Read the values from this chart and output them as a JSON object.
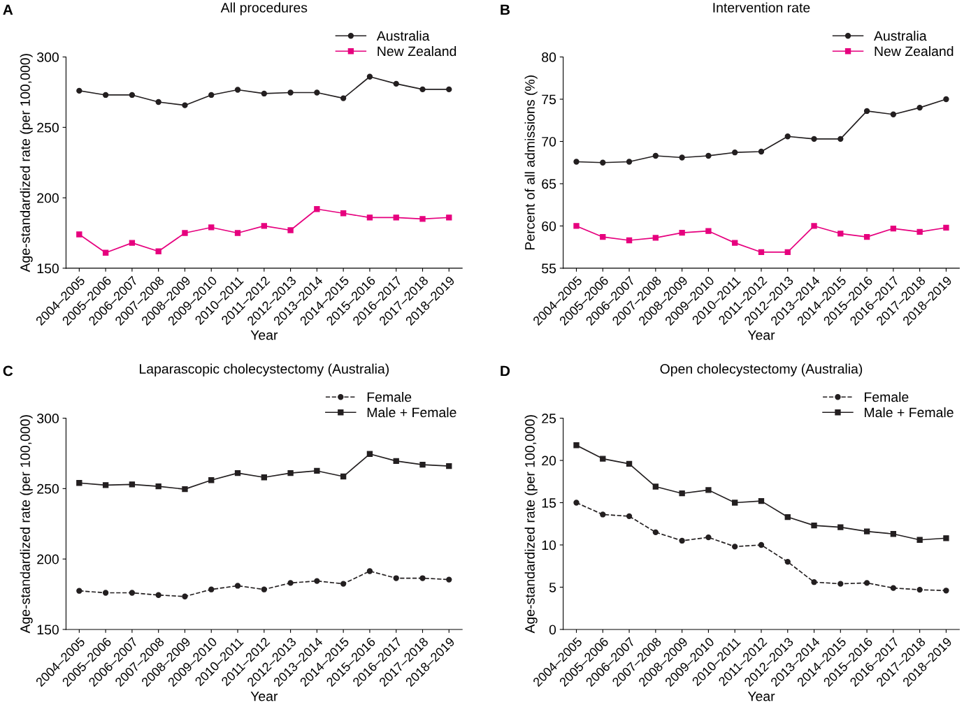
{
  "chart_data": [
    {
      "type": "line",
      "title": "All procedures",
      "xlabel": "Year",
      "ylabel": "Age-standardized rate (per 100,000)",
      "annotations": [
        "A"
      ],
      "categories": [
        "2004–2005",
        "2005–2006",
        "2006–2007",
        "2007–2008",
        "2008–2009",
        "2009–2010",
        "2010–2011",
        "2011–2012",
        "2012–2013",
        "2013–2014",
        "2014–2015",
        "2015–2016",
        "2016–2017",
        "2017–2018",
        "2018–2019"
      ],
      "ylim": [
        150,
        300
      ],
      "yticks": [
        150,
        200,
        250,
        300
      ],
      "grid": false,
      "legend": "top right",
      "series": [
        {
          "name": "Australia",
          "color": "#231f20",
          "marker": "circle",
          "line_style": "solid",
          "values": [
            276,
            273,
            273,
            268,
            265.7,
            273,
            276.7,
            274,
            274.7,
            274.7,
            270.7,
            286,
            281,
            277,
            277
          ]
        },
        {
          "name": "New Zealand",
          "color": "#e6007e",
          "marker": "square",
          "line_style": "solid",
          "values": [
            174,
            161,
            168,
            162,
            175,
            179,
            175,
            180,
            177,
            192,
            189,
            186,
            186,
            185,
            186
          ]
        }
      ]
    },
    {
      "type": "line",
      "title": "Intervention rate",
      "xlabel": "Year",
      "ylabel": "Percent of all admissions (%)",
      "annotations": [
        "B"
      ],
      "categories": [
        "2004–2005",
        "2005–2006",
        "2006–2007",
        "2007–2008",
        "2008–2009",
        "2009–2010",
        "2010–2011",
        "2011–2012",
        "2012–2013",
        "2013–2014",
        "2014–2015",
        "2015–2016",
        "2016–2017",
        "2017–2018",
        "2018–2019"
      ],
      "ylim": [
        55,
        80
      ],
      "yticks": [
        55,
        60,
        65,
        70,
        75,
        80
      ],
      "grid": false,
      "legend": "top right",
      "series": [
        {
          "name": "Australia",
          "color": "#231f20",
          "marker": "circle",
          "line_style": "solid",
          "values": [
            67.6,
            67.5,
            67.6,
            68.3,
            68.1,
            68.3,
            68.7,
            68.8,
            70.6,
            70.3,
            70.3,
            73.6,
            73.2,
            74.0,
            75.0
          ]
        },
        {
          "name": "New Zealand",
          "color": "#e6007e",
          "marker": "square",
          "line_style": "solid",
          "values": [
            60.0,
            58.7,
            58.3,
            58.6,
            59.2,
            59.4,
            58.0,
            56.9,
            56.9,
            60.0,
            59.1,
            58.7,
            59.7,
            59.3,
            59.8
          ]
        }
      ]
    },
    {
      "type": "line",
      "title": "Laparascopic cholecystectomy (Australia)",
      "xlabel": "Year",
      "ylabel": "Age-standardized rate (per 100,000)",
      "annotations": [
        "C"
      ],
      "categories": [
        "2004–2005",
        "2005–2006",
        "2006–2007",
        "2007–2008",
        "2008–2009",
        "2009–2010",
        "2010–2011",
        "2011–2012",
        "2012–2013",
        "2013–2014",
        "2014–2015",
        "2015–2016",
        "2016–2017",
        "2017–2018",
        "2018–2019"
      ],
      "ylim": [
        150,
        300
      ],
      "yticks": [
        150,
        200,
        250,
        300
      ],
      "grid": false,
      "legend": "top right",
      "series": [
        {
          "name": "Female",
          "color": "#231f20",
          "marker": "circle",
          "line_style": "dashed",
          "values": [
            177.4,
            176,
            176,
            174.4,
            173.4,
            178.4,
            181,
            178.4,
            183,
            184.4,
            182.4,
            191.4,
            186.4,
            186.4,
            185.4
          ]
        },
        {
          "name": "Male + Female",
          "color": "#231f20",
          "marker": "square",
          "line_style": "solid",
          "values": [
            254,
            252.5,
            253,
            251.6,
            249.6,
            256,
            261,
            258,
            261,
            262.6,
            258.6,
            274.6,
            269.6,
            267,
            266
          ]
        }
      ]
    },
    {
      "type": "line",
      "title": "Open cholecystectomy (Australia)",
      "xlabel": "Year",
      "ylabel": "Age-standardized rate (per 100,000)",
      "annotations": [
        "D"
      ],
      "categories": [
        "2004–2005",
        "2005–2006",
        "2006–2007",
        "2007–2008",
        "2008–2009",
        "2009–2010",
        "2010–2011",
        "2011–2012",
        "2012–2013",
        "2013–2014",
        "2014–2015",
        "2015–2016",
        "2016–2017",
        "2017–2018",
        "2018–2019"
      ],
      "ylim": [
        0,
        25
      ],
      "yticks": [
        0,
        5,
        10,
        15,
        20,
        25
      ],
      "grid": false,
      "legend": "top right",
      "series": [
        {
          "name": "Female",
          "color": "#231f20",
          "marker": "circle",
          "line_style": "dashed",
          "values": [
            15.0,
            13.6,
            13.4,
            11.5,
            10.5,
            10.9,
            9.8,
            10.0,
            8.0,
            5.6,
            5.4,
            5.5,
            4.9,
            4.7,
            4.6
          ]
        },
        {
          "name": "Male + Female",
          "color": "#231f20",
          "marker": "square",
          "line_style": "solid",
          "values": [
            21.8,
            20.2,
            19.6,
            16.9,
            16.1,
            16.5,
            15.0,
            15.2,
            13.3,
            12.3,
            12.1,
            11.6,
            11.3,
            10.6,
            10.8
          ]
        }
      ]
    }
  ]
}
